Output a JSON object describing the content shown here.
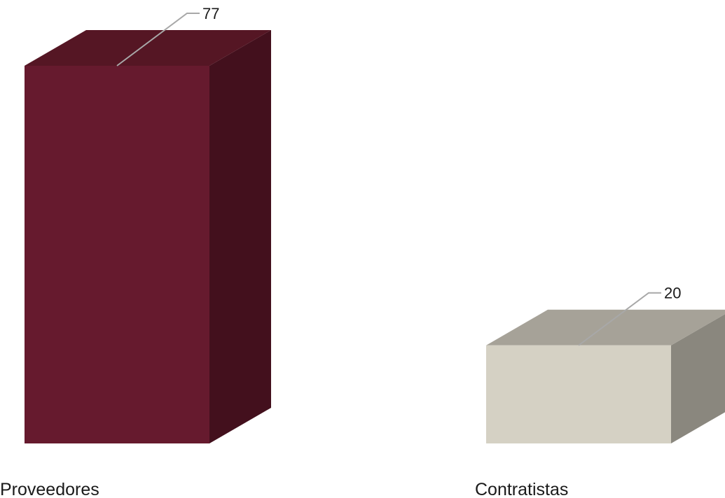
{
  "chart_data": {
    "type": "bar",
    "style": "3d-column",
    "categories": [
      "Proveedores",
      "Contratistas"
    ],
    "values": [
      77,
      20
    ],
    "data_labels": [
      "77",
      "20"
    ],
    "colors": [
      {
        "front": "#661a2e",
        "top": "#551624",
        "side": "#43101d"
      },
      {
        "front": "#d5d1c4",
        "top": "#a6a298",
        "side": "#8a877e"
      }
    ],
    "title": "",
    "xlabel": "",
    "ylabel": "",
    "ylim": [
      0,
      77
    ],
    "grid": false,
    "legend": "none"
  }
}
